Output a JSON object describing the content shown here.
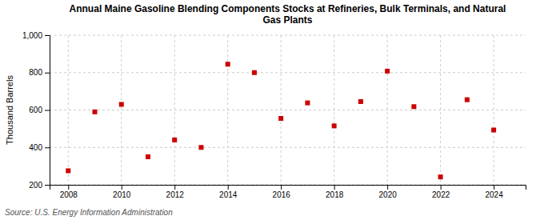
{
  "chart_data": {
    "type": "scatter",
    "title": "Annual Maine Gasoline Blending Components Stocks at Refineries, Bulk Terminals, and Natural\nGas Plants",
    "ylabel": "Thousand Barrels",
    "source": "Source: U.S. Energy Information Administration",
    "x": [
      2008,
      2009,
      2010,
      2011,
      2012,
      2013,
      2014,
      2015,
      2016,
      2017,
      2018,
      2019,
      2020,
      2021,
      2022,
      2023,
      2024
    ],
    "values": [
      275,
      590,
      630,
      350,
      440,
      400,
      845,
      800,
      555,
      638,
      515,
      645,
      808,
      618,
      242,
      655,
      493
    ],
    "color": "#cc0000",
    "marker": "square",
    "xlim": [
      2007.3,
      2025.2
    ],
    "xticks": [
      2008,
      2010,
      2012,
      2014,
      2016,
      2018,
      2020,
      2022,
      2024
    ],
    "ylim": [
      200,
      1000
    ],
    "yticks": [
      200,
      400,
      600,
      800,
      {
        "value": 1000,
        "label": "1,000"
      }
    ],
    "grid": true
  }
}
